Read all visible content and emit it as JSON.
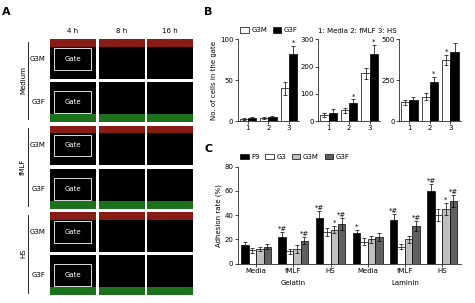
{
  "panel_labels": [
    "A",
    "B",
    "C"
  ],
  "panel_A": {
    "columns": [
      "4 h",
      "8 h",
      "16 h"
    ],
    "groups": [
      {
        "name": "Medium",
        "rows": [
          "G3M",
          "G3F"
        ]
      },
      {
        "name": "fMLF",
        "rows": [
          "G3M",
          "G3F"
        ]
      },
      {
        "name": "HS",
        "rows": [
          "G3M",
          "G3F"
        ]
      }
    ],
    "row_colors": {
      "G3M": "#e03020",
      "G3F": "#30c030"
    },
    "gate_label": "Gate"
  },
  "chart_data": [
    {
      "type": "bar",
      "y_label": "No. of cells in the gate",
      "legend": "lower left",
      "note": "1: Media 2: fMLF 3: HS",
      "categories": [
        "1",
        "2",
        "3"
      ],
      "ylim": [
        0,
        100
      ],
      "yticks": [
        0,
        50,
        100
      ],
      "series": [
        {
          "name": "G3M",
          "color": "#ffffff",
          "values": [
            3,
            4,
            40
          ],
          "errors": [
            1,
            1,
            8
          ],
          "marks": [
            null,
            null,
            null
          ]
        },
        {
          "name": "G3F",
          "color": "#000000",
          "values": [
            4,
            5,
            82
          ],
          "errors": [
            1,
            1,
            10
          ],
          "marks": [
            null,
            null,
            "*"
          ]
        }
      ]
    },
    {
      "type": "bar",
      "categories": [
        "1",
        "2",
        "3"
      ],
      "ylim": [
        0,
        300
      ],
      "yticks": [
        0,
        100,
        200,
        300
      ],
      "series": [
        {
          "name": "G3M",
          "color": "#ffffff",
          "values": [
            22,
            40,
            175
          ],
          "errors": [
            8,
            10,
            20
          ],
          "marks": [
            null,
            null,
            null
          ]
        },
        {
          "name": "G3F",
          "color": "#000000",
          "values": [
            30,
            65,
            245
          ],
          "errors": [
            15,
            15,
            35
          ],
          "marks": [
            null,
            "*",
            "*"
          ]
        }
      ]
    },
    {
      "type": "bar",
      "categories": [
        "1",
        "2",
        "3"
      ],
      "ylim": [
        0,
        500
      ],
      "yticks": [
        0,
        250,
        500
      ],
      "series": [
        {
          "name": "G3M",
          "color": "#ffffff",
          "values": [
            115,
            150,
            375
          ],
          "errors": [
            15,
            20,
            30
          ],
          "marks": [
            null,
            null,
            "*"
          ]
        },
        {
          "name": "G3F",
          "color": "#000000",
          "values": [
            130,
            240,
            420
          ],
          "errors": [
            20,
            30,
            60
          ],
          "marks": [
            null,
            "*",
            null
          ]
        }
      ]
    },
    {
      "type": "bar",
      "y_label": "Adhesion rate (%)",
      "legend": "lower left",
      "categories": [
        "Media",
        "fMLF",
        "HS",
        "Media",
        "fMLF",
        "HS"
      ],
      "groups": [
        {
          "label": "Gelatin",
          "size": 3
        },
        {
          "label": "Laminin",
          "size": 3
        }
      ],
      "ylim": [
        0,
        80
      ],
      "yticks": [
        0,
        20,
        40,
        60,
        80
      ],
      "series": [
        {
          "name": "F9",
          "color": "#000000",
          "values": [
            15,
            22,
            38,
            25,
            36,
            60
          ],
          "errors": [
            3,
            4,
            5,
            3,
            5,
            6
          ],
          "marks": [
            null,
            "*#",
            "*#",
            "*",
            "*#",
            "*#"
          ]
        },
        {
          "name": "G3",
          "color": "#ffffff",
          "values": [
            11,
            10,
            26,
            18,
            14,
            40
          ],
          "errors": [
            2,
            2,
            3,
            3,
            2,
            5
          ],
          "marks": [
            null,
            null,
            null,
            null,
            null,
            null
          ]
        },
        {
          "name": "G3M",
          "color": "#c0c0c0",
          "values": [
            12,
            12,
            28,
            20,
            20,
            45
          ],
          "errors": [
            2,
            3,
            3,
            3,
            3,
            5
          ],
          "marks": [
            null,
            null,
            "*",
            null,
            null,
            "*"
          ]
        },
        {
          "name": "G3F",
          "color": "#606060",
          "values": [
            14,
            19,
            33,
            22,
            31,
            52
          ],
          "errors": [
            2,
            3,
            5,
            3,
            4,
            5
          ],
          "marks": [
            null,
            "*#",
            "*#",
            null,
            "*#",
            "*#"
          ]
        }
      ]
    }
  ]
}
